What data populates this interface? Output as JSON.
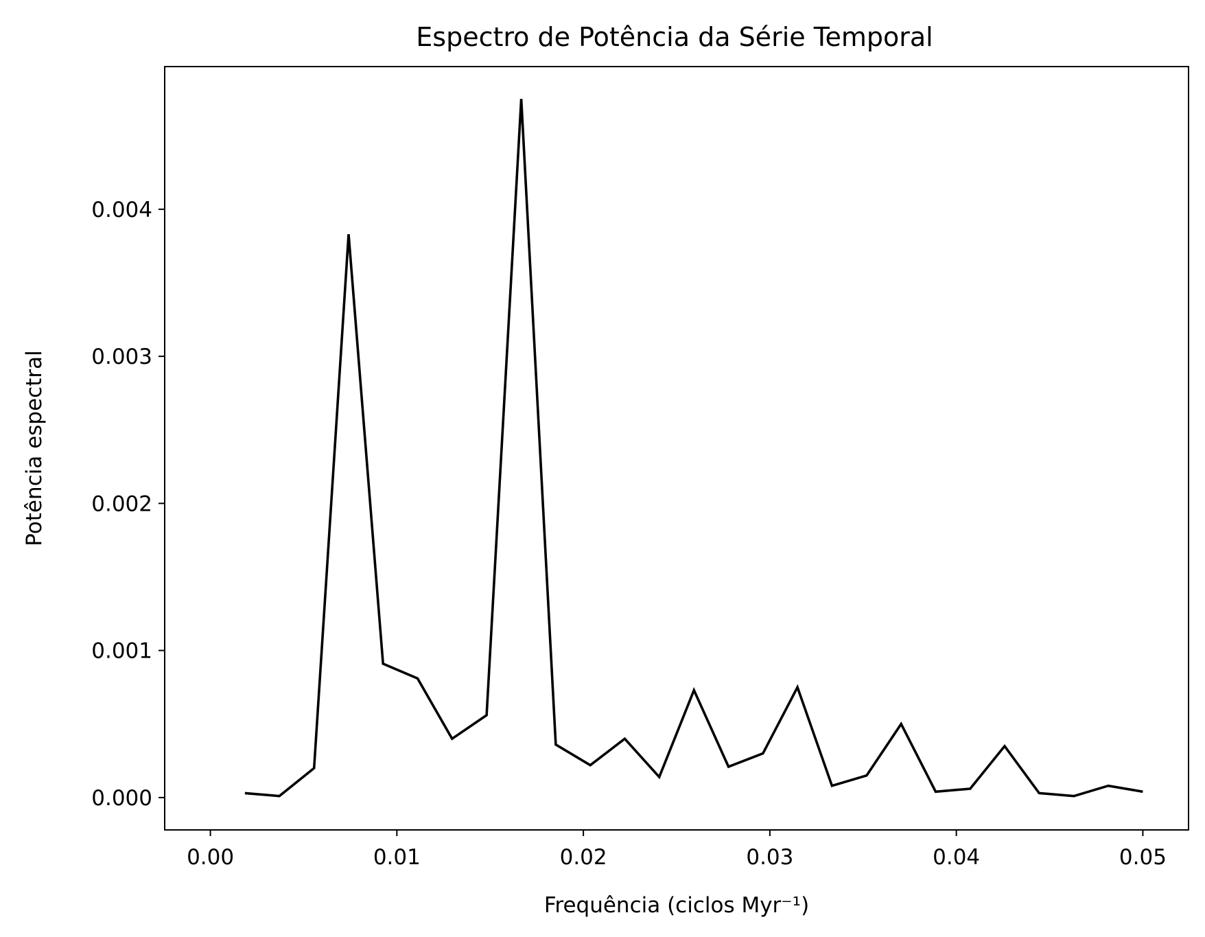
{
  "chart_data": {
    "type": "line",
    "title": "Espectro de Potência da Série Temporal",
    "xlabel": "Frequência (ciclos Myr⁻¹)",
    "ylabel": "Potência espectral",
    "xlim": [
      -0.00245,
      0.05245
    ],
    "ylim": [
      -0.00022,
      0.00497
    ],
    "xticks": [
      0.0,
      0.01,
      0.02,
      0.03,
      0.04,
      0.05
    ],
    "xtick_labels": [
      "0.00",
      "0.01",
      "0.02",
      "0.03",
      "0.04",
      "0.05"
    ],
    "yticks": [
      0.0,
      0.001,
      0.002,
      0.003,
      0.004
    ],
    "ytick_labels": [
      "0.000",
      "0.001",
      "0.002",
      "0.003",
      "0.004"
    ],
    "grid": false,
    "series": [
      {
        "color": "#000000",
        "x": [
          0.00185,
          0.0037,
          0.00556,
          0.00741,
          0.00926,
          0.01111,
          0.01296,
          0.01481,
          0.01667,
          0.01852,
          0.02037,
          0.02222,
          0.02407,
          0.02593,
          0.02778,
          0.02963,
          0.03148,
          0.03333,
          0.03519,
          0.03704,
          0.03889,
          0.04074,
          0.04259,
          0.04444,
          0.0463,
          0.04815,
          0.05
        ],
        "y": [
          3e-05,
          1e-05,
          0.0002,
          0.00383,
          0.00091,
          0.00081,
          0.0004,
          0.00056,
          0.00475,
          0.00036,
          0.00022,
          0.0004,
          0.00014,
          0.00073,
          0.00021,
          0.0003,
          0.00075,
          8e-05,
          0.00015,
          0.0005,
          4e-05,
          6e-05,
          0.00035,
          3e-05,
          1e-05,
          8e-05,
          4e-05
        ]
      }
    ]
  }
}
